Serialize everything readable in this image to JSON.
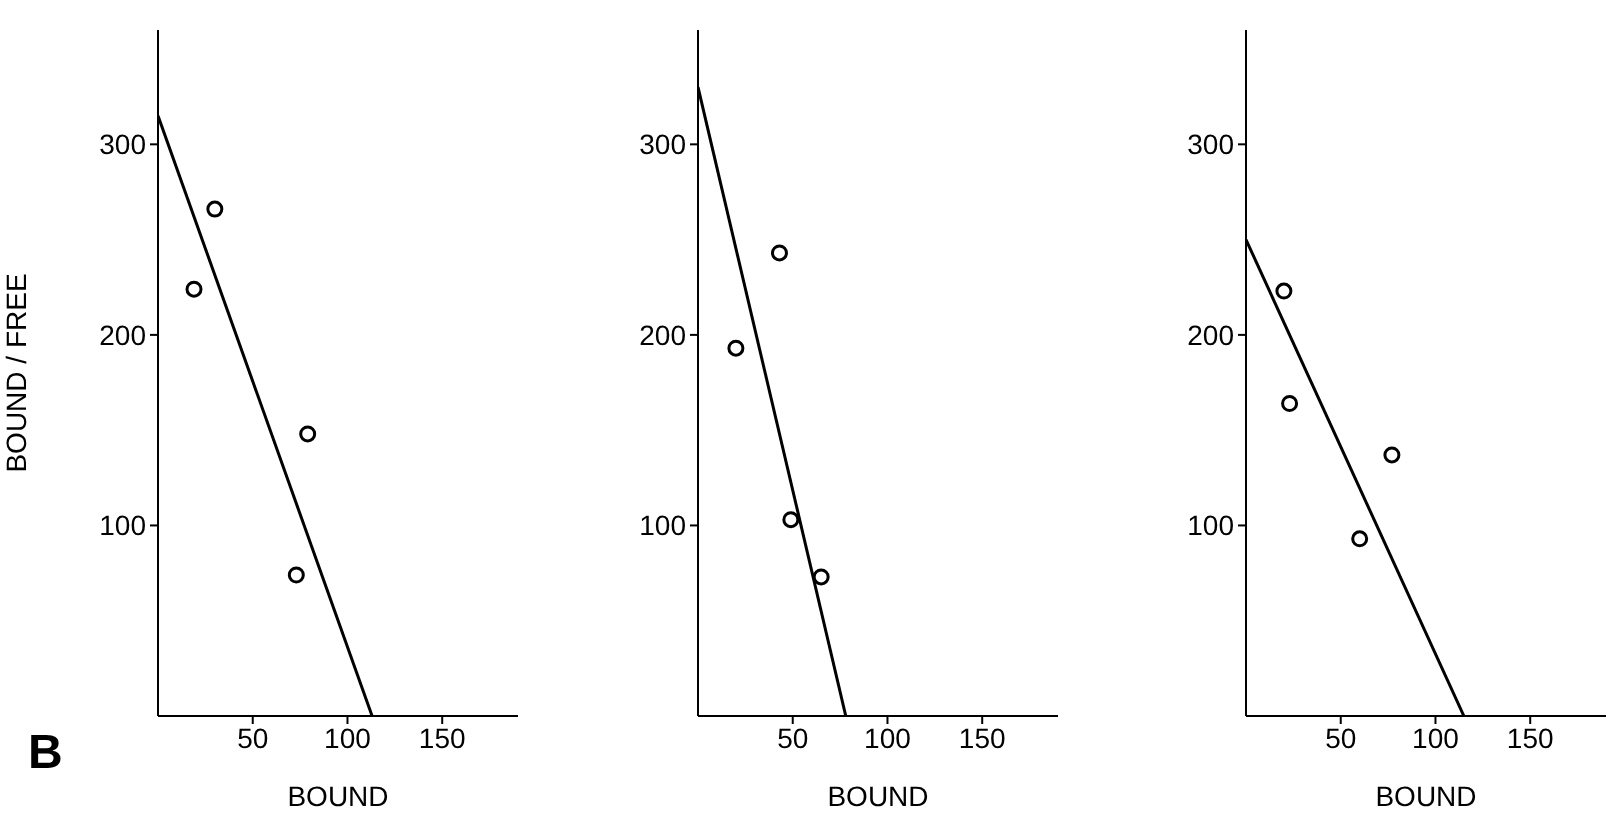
{
  "chart_data": [
    {
      "type": "scatter",
      "xlabel": "BOUND",
      "ylabel": "BOUND / FREE",
      "annotations": [
        "B"
      ],
      "xlim": [
        0,
        190
      ],
      "xticks": [
        50,
        100,
        150
      ],
      "ylim": [
        0,
        360
      ],
      "yticks": [
        100,
        200,
        300
      ],
      "grid": false,
      "legend": false,
      "line_style": "solid",
      "series": [
        {
          "color": "#000000",
          "marker": "circle",
          "x": [
            19,
            30,
            79,
            73
          ],
          "values": [
            224,
            266,
            148,
            74
          ]
        },
        {
          "type": "line",
          "marker": "none",
          "color": "#000000",
          "x": [
            0,
            113
          ],
          "values": [
            315,
            0
          ]
        }
      ]
    },
    {
      "type": "scatter",
      "xlabel": "BOUND",
      "xlim": [
        0,
        190
      ],
      "xticks": [
        50,
        100,
        150
      ],
      "ylim": [
        0,
        360
      ],
      "yticks": [
        100,
        200,
        300
      ],
      "grid": false,
      "legend": false,
      "line_style": "solid",
      "series": [
        {
          "color": "#000000",
          "marker": "circle",
          "x": [
            20,
            43,
            49,
            65
          ],
          "values": [
            193,
            243,
            103,
            73
          ]
        },
        {
          "type": "line",
          "marker": "none",
          "color": "#000000",
          "x": [
            0,
            78
          ],
          "values": [
            330,
            0
          ]
        }
      ]
    },
    {
      "type": "scatter",
      "xlabel": "BOUND",
      "xlim": [
        0,
        190
      ],
      "xticks": [
        50,
        100,
        150
      ],
      "ylim": [
        0,
        360
      ],
      "yticks": [
        100,
        200,
        300
      ],
      "grid": false,
      "legend": false,
      "line_style": "solid",
      "series": [
        {
          "color": "#000000",
          "marker": "circle",
          "x": [
            20,
            23,
            60,
            77
          ],
          "values": [
            223,
            164,
            93,
            137
          ]
        },
        {
          "type": "line",
          "marker": "none",
          "color": "#000000",
          "x": [
            0,
            115
          ],
          "values": [
            250,
            0
          ]
        }
      ]
    }
  ]
}
